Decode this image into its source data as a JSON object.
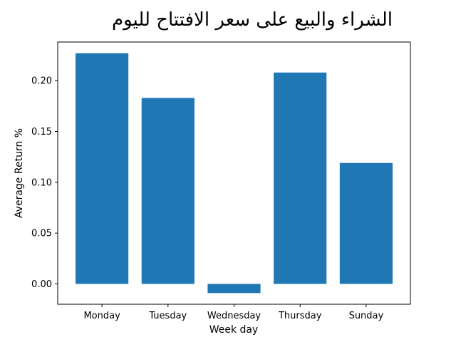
{
  "chart_data": {
    "type": "bar",
    "title": "الشراء والبيع على سعر الافتتاح لليوم",
    "xlabel": "Week day",
    "ylabel": "Average Return %",
    "categories": [
      "Monday",
      "Tuesday",
      "Wednesday",
      "Thursday",
      "Sunday"
    ],
    "values": [
      0.227,
      0.183,
      -0.009,
      0.208,
      0.119
    ],
    "ylim": [
      -0.02,
      0.238
    ],
    "yticks": [
      0.0,
      0.05,
      0.1,
      0.15,
      0.2
    ],
    "ytick_labels": [
      "0.00",
      "0.05",
      "0.10",
      "0.15",
      "0.20"
    ],
    "bar_color": "#1f77b4",
    "grid": false,
    "legend": "none"
  }
}
